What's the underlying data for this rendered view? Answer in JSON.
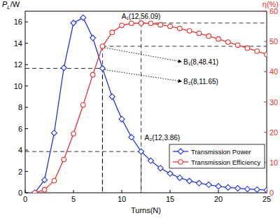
{
  "chart_data": {
    "type": "line",
    "x_label": "Turns(N)",
    "y_label": "PL/W",
    "y2_label": "η(%)",
    "x": [
      1,
      2,
      3,
      4,
      5,
      6,
      7,
      8,
      9,
      10,
      11,
      12,
      13,
      14,
      15,
      16,
      17,
      18,
      19,
      20,
      21,
      22,
      23,
      24,
      25
    ],
    "series": [
      {
        "name": "Transmission Power",
        "color": "#1f35e0",
        "marker": "diamond",
        "axis": "y",
        "values": [
          0,
          1.2,
          5.6,
          11.7,
          15.9,
          16.4,
          14.5,
          11.65,
          9.0,
          6.9,
          5.2,
          3.86,
          3.0,
          2.3,
          1.8,
          1.4,
          1.1,
          0.9,
          0.75,
          0.6,
          0.5,
          0.42,
          0.35,
          0.3,
          0.25
        ]
      },
      {
        "name": "Transmission Efficiency",
        "color": "#e8312f",
        "marker": "circle",
        "axis": "y2",
        "values": [
          0,
          1,
          4,
          11,
          19.5,
          29,
          39,
          48.41,
          53,
          55.3,
          56,
          56.09,
          56,
          55.5,
          55,
          54.3,
          53.5,
          52.7,
          51.8,
          50.8,
          49.8,
          48.8,
          47.8,
          46.8,
          45.7
        ]
      }
    ],
    "xlim": [
      0,
      25
    ],
    "xticks": [
      0,
      5,
      10,
      15,
      20,
      25
    ],
    "ylim": [
      0,
      17
    ],
    "yticks": [
      0,
      2,
      4,
      6,
      8,
      10,
      12,
      14,
      16
    ],
    "y2lim": [
      0,
      60
    ],
    "y2ticks": [
      0,
      10,
      20,
      30,
      40,
      50,
      60
    ],
    "annotations": [
      {
        "text": "A₁(12,56.09)",
        "x": 12,
        "y": 56.09,
        "axis": "y2"
      },
      {
        "text": "B₁(8,48.41)",
        "x": 8,
        "y": 48.41,
        "axis": "y2"
      },
      {
        "text": "B₂(8,11.65)",
        "x": 8,
        "y": 11.65,
        "axis": "y"
      },
      {
        "text": "A₂(12,3.86)",
        "x": 12,
        "y": 3.86,
        "axis": "y"
      }
    ],
    "legend": "lower right",
    "grid": false
  }
}
